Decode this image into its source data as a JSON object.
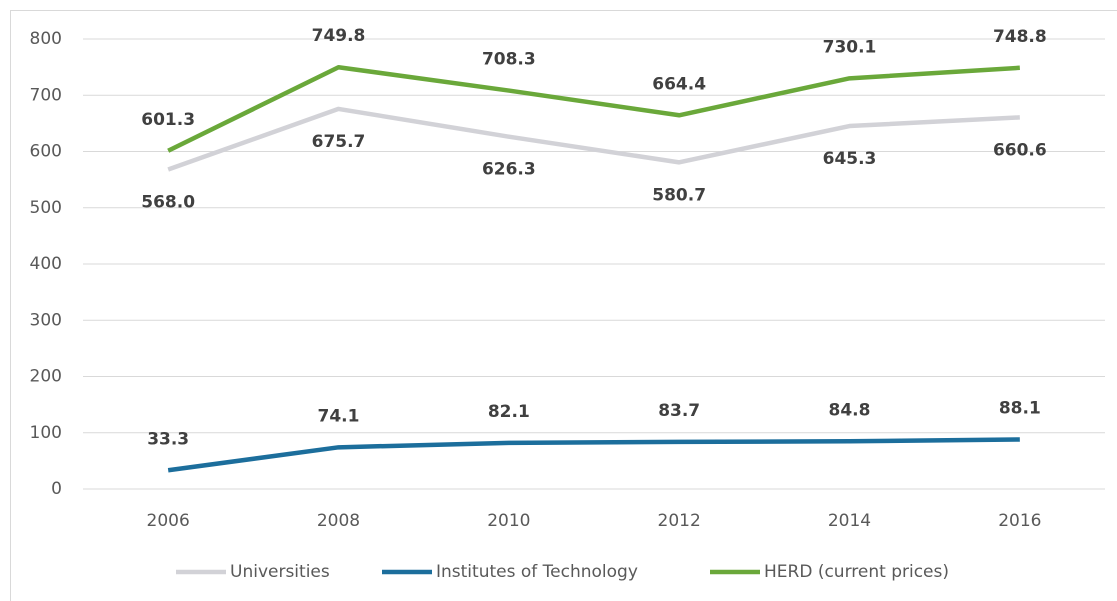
{
  "chart_data": {
    "type": "line",
    "categories": [
      "2006",
      "2008",
      "2010",
      "2012",
      "2014",
      "2016"
    ],
    "series": [
      {
        "name": "Universities",
        "color": "#d2d2d7",
        "values": [
          568.0,
          675.7,
          626.3,
          580.7,
          645.3,
          660.6
        ],
        "value_labels": [
          "568.0",
          "675.7",
          "626.3",
          "580.7",
          "645.3",
          "660.6"
        ]
      },
      {
        "name": "Institutes of Technology",
        "color": "#1c6e9c",
        "values": [
          33.3,
          74.1,
          82.1,
          83.7,
          84.8,
          88.1
        ],
        "value_labels": [
          "33.3",
          "74.1",
          "82.1",
          "83.7",
          "84.8",
          "88.1"
        ]
      },
      {
        "name": "HERD (current prices)",
        "color": "#6aa83a",
        "values": [
          601.3,
          749.8,
          708.3,
          664.4,
          730.1,
          748.8
        ],
        "value_labels": [
          "601.3",
          "749.8",
          "708.3",
          "664.4",
          "730.1",
          "748.8"
        ]
      }
    ],
    "ylim": [
      0,
      800
    ],
    "yticks": [
      0,
      100,
      200,
      300,
      400,
      500,
      600,
      700,
      800
    ],
    "grid": true,
    "legend": "bottom"
  }
}
